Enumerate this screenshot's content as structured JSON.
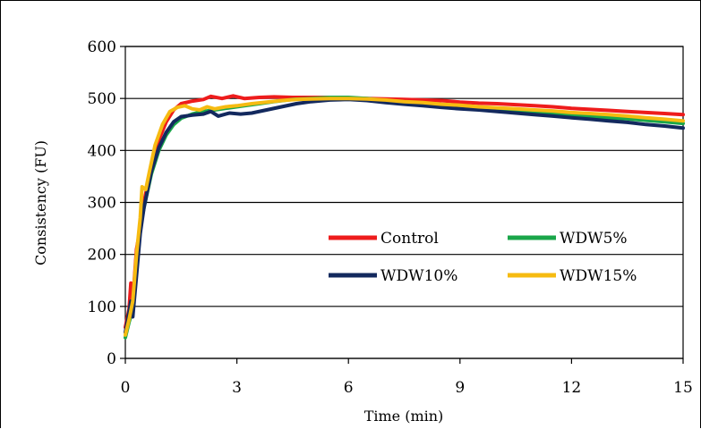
{
  "chart_data": {
    "type": "line",
    "xlabel": "Time (min)",
    "ylabel": "Consistency  (FU)",
    "xlim": [
      0,
      15
    ],
    "ylim": [
      0,
      600
    ],
    "x_ticks": [
      "0",
      "3",
      "6",
      "9",
      "12",
      "15"
    ],
    "y_ticks": [
      "0",
      "100",
      "200",
      "300",
      "400",
      "500",
      "600"
    ],
    "grid": "horizontal",
    "legend_position": "inside-center",
    "series": [
      {
        "name": "Control",
        "color": "#ee1c1c",
        "points": [
          [
            0,
            60
          ],
          [
            0.1,
            95
          ],
          [
            0.15,
            145
          ],
          [
            0.2,
            110
          ],
          [
            0.3,
            210
          ],
          [
            0.4,
            250
          ],
          [
            0.5,
            300
          ],
          [
            0.7,
            370
          ],
          [
            0.9,
            420
          ],
          [
            1.1,
            455
          ],
          [
            1.3,
            478
          ],
          [
            1.5,
            490
          ],
          [
            1.8,
            495
          ],
          [
            2.1,
            498
          ],
          [
            2.3,
            504
          ],
          [
            2.6,
            500
          ],
          [
            2.9,
            505
          ],
          [
            3.2,
            500
          ],
          [
            3.6,
            502
          ],
          [
            4.0,
            503
          ],
          [
            4.5,
            502
          ],
          [
            5.0,
            502
          ],
          [
            5.5,
            502
          ],
          [
            6.0,
            501
          ],
          [
            6.5,
            500
          ],
          [
            7.0,
            499
          ],
          [
            7.5,
            498
          ],
          [
            8.0,
            497
          ],
          [
            8.5,
            496
          ],
          [
            9.0,
            493
          ],
          [
            9.5,
            491
          ],
          [
            10.0,
            490
          ],
          [
            10.5,
            488
          ],
          [
            11.0,
            486
          ],
          [
            11.5,
            484
          ],
          [
            12.0,
            481
          ],
          [
            12.5,
            479
          ],
          [
            13.0,
            477
          ],
          [
            13.5,
            475
          ],
          [
            14.0,
            473
          ],
          [
            14.5,
            471
          ],
          [
            15.0,
            469
          ]
        ]
      },
      {
        "name": "WDW5%",
        "color": "#1aa64a",
        "points": [
          [
            0,
            40
          ],
          [
            0.1,
            70
          ],
          [
            0.2,
            95
          ],
          [
            0.3,
            180
          ],
          [
            0.4,
            250
          ],
          [
            0.5,
            290
          ],
          [
            0.7,
            355
          ],
          [
            0.9,
            400
          ],
          [
            1.1,
            430
          ],
          [
            1.3,
            450
          ],
          [
            1.5,
            462
          ],
          [
            1.8,
            470
          ],
          [
            2.1,
            475
          ],
          [
            2.4,
            478
          ],
          [
            2.8,
            482
          ],
          [
            3.2,
            486
          ],
          [
            3.6,
            490
          ],
          [
            4.0,
            494
          ],
          [
            4.5,
            498
          ],
          [
            5.0,
            500
          ],
          [
            5.5,
            502
          ],
          [
            6.0,
            502
          ],
          [
            6.5,
            500
          ],
          [
            7.0,
            496
          ],
          [
            7.5,
            493
          ],
          [
            8.0,
            490
          ],
          [
            8.5,
            487
          ],
          [
            9.0,
            484
          ],
          [
            9.5,
            481
          ],
          [
            10.0,
            478
          ],
          [
            10.5,
            475
          ],
          [
            11.0,
            473
          ],
          [
            11.5,
            470
          ],
          [
            12.0,
            468
          ],
          [
            12.5,
            465
          ],
          [
            13.0,
            463
          ],
          [
            13.5,
            461
          ],
          [
            14.0,
            458
          ],
          [
            14.5,
            455
          ],
          [
            15.0,
            452
          ]
        ]
      },
      {
        "name": "WDW10%",
        "color": "#13295e",
        "points": [
          [
            0,
            50
          ],
          [
            0.1,
            90
          ],
          [
            0.15,
            110
          ],
          [
            0.2,
            80
          ],
          [
            0.3,
            160
          ],
          [
            0.4,
            240
          ],
          [
            0.5,
            290
          ],
          [
            0.7,
            360
          ],
          [
            0.9,
            405
          ],
          [
            1.1,
            435
          ],
          [
            1.3,
            455
          ],
          [
            1.5,
            465
          ],
          [
            1.8,
            468
          ],
          [
            2.1,
            470
          ],
          [
            2.3,
            475
          ],
          [
            2.5,
            466
          ],
          [
            2.8,
            472
          ],
          [
            3.1,
            470
          ],
          [
            3.4,
            472
          ],
          [
            3.8,
            478
          ],
          [
            4.2,
            484
          ],
          [
            4.6,
            490
          ],
          [
            5.0,
            494
          ],
          [
            5.5,
            497
          ],
          [
            6.0,
            498
          ],
          [
            6.5,
            496
          ],
          [
            7.0,
            492
          ],
          [
            7.5,
            489
          ],
          [
            8.0,
            486
          ],
          [
            8.5,
            483
          ],
          [
            9.0,
            480
          ],
          [
            9.5,
            478
          ],
          [
            10.0,
            475
          ],
          [
            10.5,
            472
          ],
          [
            11.0,
            469
          ],
          [
            11.5,
            466
          ],
          [
            12.0,
            463
          ],
          [
            12.5,
            460
          ],
          [
            13.0,
            457
          ],
          [
            13.5,
            454
          ],
          [
            14.0,
            450
          ],
          [
            14.5,
            447
          ],
          [
            15.0,
            443
          ]
        ]
      },
      {
        "name": "WDW15%",
        "color": "#f6bb11",
        "points": [
          [
            0,
            45
          ],
          [
            0.1,
            75
          ],
          [
            0.2,
            110
          ],
          [
            0.3,
            200
          ],
          [
            0.4,
            270
          ],
          [
            0.45,
            330
          ],
          [
            0.55,
            325
          ],
          [
            0.65,
            360
          ],
          [
            0.8,
            410
          ],
          [
            1.0,
            450
          ],
          [
            1.2,
            475
          ],
          [
            1.4,
            483
          ],
          [
            1.6,
            486
          ],
          [
            1.8,
            480
          ],
          [
            2.0,
            478
          ],
          [
            2.2,
            484
          ],
          [
            2.4,
            480
          ],
          [
            2.7,
            484
          ],
          [
            3.0,
            486
          ],
          [
            3.4,
            490
          ],
          [
            3.8,
            493
          ],
          [
            4.2,
            496
          ],
          [
            4.6,
            498
          ],
          [
            5.0,
            499
          ],
          [
            5.5,
            500
          ],
          [
            6.0,
            500
          ],
          [
            6.5,
            499
          ],
          [
            7.0,
            497
          ],
          [
            7.5,
            494
          ],
          [
            8.0,
            492
          ],
          [
            8.5,
            489
          ],
          [
            9.0,
            487
          ],
          [
            9.5,
            484
          ],
          [
            10.0,
            482
          ],
          [
            10.5,
            480
          ],
          [
            11.0,
            478
          ],
          [
            11.5,
            476
          ],
          [
            12.0,
            473
          ],
          [
            12.5,
            471
          ],
          [
            13.0,
            469
          ],
          [
            13.5,
            466
          ],
          [
            14.0,
            463
          ],
          [
            14.5,
            460
          ],
          [
            15.0,
            457
          ]
        ]
      }
    ]
  }
}
